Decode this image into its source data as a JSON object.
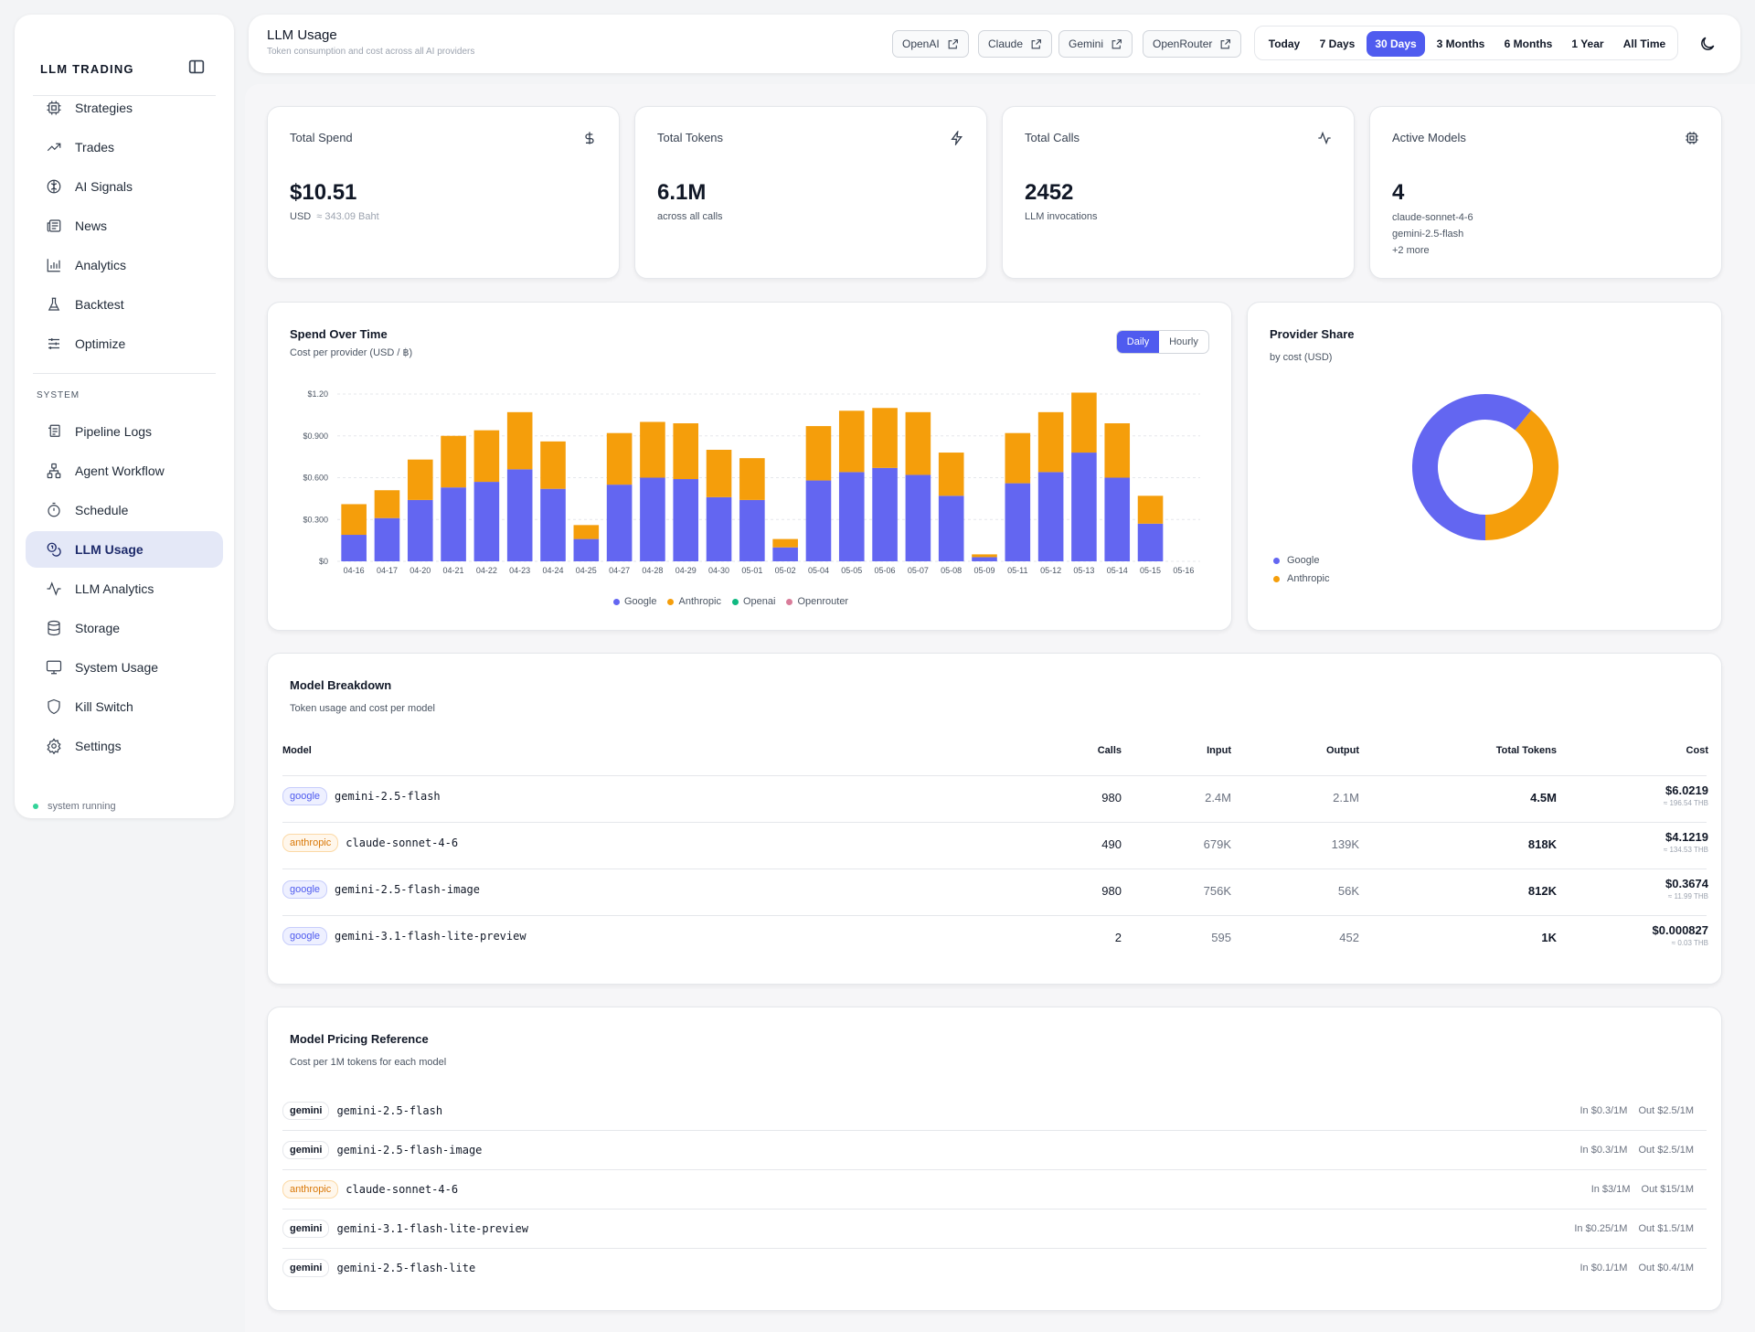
{
  "sidebar": {
    "brand": "LLM TRADING",
    "items": [
      {
        "label": "Strategies",
        "icon": "cpu-icon"
      },
      {
        "label": "Trades",
        "icon": "trending-up-icon"
      },
      {
        "label": "AI Signals",
        "icon": "brain-icon"
      },
      {
        "label": "News",
        "icon": "newspaper-icon"
      },
      {
        "label": "Analytics",
        "icon": "bar-chart-icon"
      },
      {
        "label": "Backtest",
        "icon": "flask-icon"
      },
      {
        "label": "Optimize",
        "icon": "sliders-icon"
      }
    ],
    "system_label": "SYSTEM",
    "system_items": [
      {
        "label": "Pipeline Logs",
        "icon": "scroll-icon"
      },
      {
        "label": "Agent Workflow",
        "icon": "workflow-icon"
      },
      {
        "label": "Schedule",
        "icon": "timer-icon"
      },
      {
        "label": "LLM Usage",
        "icon": "coins-icon",
        "active": true
      },
      {
        "label": "LLM Analytics",
        "icon": "activity-icon"
      },
      {
        "label": "Storage",
        "icon": "database-icon"
      },
      {
        "label": "System Usage",
        "icon": "monitor-icon"
      },
      {
        "label": "Kill Switch",
        "icon": "shield-icon"
      },
      {
        "label": "Settings",
        "icon": "gear-icon"
      }
    ],
    "status": "system running"
  },
  "header": {
    "title": "LLM Usage",
    "subtitle": "Token consumption and cost across all AI providers",
    "providers": [
      "OpenAI",
      "Claude",
      "Gemini",
      "OpenRouter"
    ],
    "ranges": [
      "Today",
      "7 Days",
      "30 Days",
      "3 Months",
      "6 Months",
      "1 Year",
      "All Time"
    ],
    "active_range": "30 Days"
  },
  "kpis": {
    "spend": {
      "title": "Total Spend",
      "value": "$10.51",
      "unit": "USD",
      "baht": "≈ 343.09 Baht"
    },
    "tokens": {
      "title": "Total Tokens",
      "value": "6.1M",
      "sub": "across all calls"
    },
    "calls": {
      "title": "Total Calls",
      "value": "2452",
      "sub": "LLM invocations"
    },
    "models": {
      "title": "Active Models",
      "value": "4",
      "line1": "claude-sonnet-4-6",
      "line2": "gemini-2.5-flash",
      "line3": "+2 more"
    }
  },
  "spend_chart": {
    "title": "Spend Over Time",
    "subtitle": "Cost per provider (USD / ฿)",
    "toggle_on": "Daily",
    "toggle_off": "Hourly",
    "legend": [
      "Google",
      "Anthropic",
      "Openai",
      "Openrouter"
    ]
  },
  "share_chart": {
    "title": "Provider Share",
    "subtitle": "by cost (USD)",
    "legend": [
      "Google",
      "Anthropic"
    ]
  },
  "colors": {
    "google": "#6366f1",
    "anthropic": "#f59e0b",
    "openai": "#10b981",
    "openrouter": "#d97c9a",
    "accent": "#4f5bef"
  },
  "chart_data": [
    {
      "type": "bar",
      "stacked": true,
      "ylim": [
        0,
        1.2
      ],
      "yticks": [
        "$0",
        "$0.300",
        "$0.600",
        "$0.900",
        "$1.20"
      ],
      "categories": [
        "04-16",
        "04-17",
        "04-20",
        "04-21",
        "04-22",
        "04-23",
        "04-24",
        "04-25",
        "04-27",
        "04-28",
        "04-29",
        "04-30",
        "05-01",
        "05-02",
        "05-04",
        "05-05",
        "05-06",
        "05-07",
        "05-08",
        "05-09",
        "05-11",
        "05-12",
        "05-13",
        "05-14",
        "05-15",
        "05-16"
      ],
      "series": [
        {
          "name": "Google",
          "values": [
            0.19,
            0.31,
            0.44,
            0.53,
            0.57,
            0.66,
            0.52,
            0.16,
            0.55,
            0.6,
            0.59,
            0.46,
            0.44,
            0.1,
            0.58,
            0.64,
            0.67,
            0.62,
            0.47,
            0.03,
            0.56,
            0.64,
            0.78,
            0.6,
            0.27,
            0
          ]
        },
        {
          "name": "Anthropic",
          "values": [
            0.22,
            0.2,
            0.29,
            0.37,
            0.37,
            0.41,
            0.34,
            0.1,
            0.37,
            0.4,
            0.4,
            0.34,
            0.3,
            0.06,
            0.39,
            0.44,
            0.43,
            0.45,
            0.31,
            0.02,
            0.36,
            0.43,
            0.43,
            0.39,
            0.2,
            0
          ]
        },
        {
          "name": "Openai",
          "values": [
            0,
            0,
            0,
            0,
            0,
            0,
            0,
            0,
            0,
            0,
            0,
            0,
            0,
            0,
            0,
            0,
            0,
            0,
            0,
            0,
            0,
            0,
            0,
            0,
            0,
            0
          ]
        },
        {
          "name": "Openrouter",
          "values": [
            0,
            0,
            0,
            0,
            0,
            0,
            0,
            0,
            0,
            0,
            0,
            0,
            0,
            0,
            0,
            0,
            0,
            0,
            0,
            0,
            0,
            0,
            0,
            0,
            0,
            0
          ]
        }
      ]
    },
    {
      "type": "pie",
      "donut": true,
      "categories": [
        "Google",
        "Anthropic"
      ],
      "values": [
        6.39,
        4.12
      ]
    }
  ],
  "breakdown": {
    "title": "Model Breakdown",
    "subtitle": "Token usage and cost per model",
    "headers": {
      "model": "Model",
      "calls": "Calls",
      "input": "Input",
      "output": "Output",
      "total": "Total Tokens",
      "cost": "Cost"
    },
    "rows": [
      {
        "provider": "google",
        "model": "gemini-2.5-flash",
        "calls": "980",
        "input": "2.4M",
        "output": "2.1M",
        "total": "4.5M",
        "cost": "$6.0219",
        "thb": "≈ 196.54 THB"
      },
      {
        "provider": "anthropic",
        "model": "claude-sonnet-4-6",
        "calls": "490",
        "input": "679K",
        "output": "139K",
        "total": "818K",
        "cost": "$4.1219",
        "thb": "≈ 134.53 THB"
      },
      {
        "provider": "google",
        "model": "gemini-2.5-flash-image",
        "calls": "980",
        "input": "756K",
        "output": "56K",
        "total": "812K",
        "cost": "$0.3674",
        "thb": "≈ 11.99 THB"
      },
      {
        "provider": "google",
        "model": "gemini-3.1-flash-lite-preview",
        "calls": "2",
        "input": "595",
        "output": "452",
        "total": "1K",
        "cost": "$0.000827",
        "thb": "≈ 0.03 THB"
      }
    ]
  },
  "pricing": {
    "title": "Model Pricing Reference",
    "subtitle": "Cost per 1M tokens for each model",
    "rows": [
      {
        "provider": "gemini",
        "model": "gemini-2.5-flash",
        "in": "In $0.3/1M",
        "out": "Out $2.5/1M"
      },
      {
        "provider": "gemini",
        "model": "gemini-2.5-flash-image",
        "in": "In $0.3/1M",
        "out": "Out $2.5/1M"
      },
      {
        "provider": "anthropic",
        "model": "claude-sonnet-4-6",
        "in": "In $3/1M",
        "out": "Out $15/1M"
      },
      {
        "provider": "gemini",
        "model": "gemini-3.1-flash-lite-preview",
        "in": "In $0.25/1M",
        "out": "Out $1.5/1M"
      },
      {
        "provider": "gemini",
        "model": "gemini-2.5-flash-lite",
        "in": "In $0.1/1M",
        "out": "Out $0.4/1M"
      }
    ]
  }
}
